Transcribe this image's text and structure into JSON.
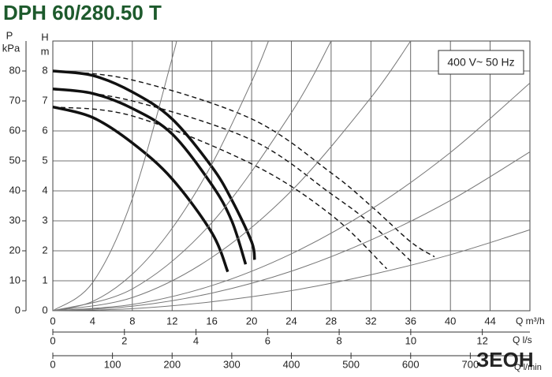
{
  "chart_data": {
    "type": "line",
    "title": "DPH 60/280.50 T",
    "annotation": "400 V~ 50 Hz",
    "ylabel": "H",
    "yunit": "m",
    "y2label": "P",
    "y2unit": "kPa",
    "xlabel": "Q m³/h",
    "x2label": "Q l/s",
    "x3label": "Q l/min",
    "watermark": "ЗЕОН",
    "grid": true,
    "xlim": [
      0,
      48
    ],
    "xticks": [
      0,
      4,
      8,
      12,
      16,
      20,
      24,
      28,
      32,
      36,
      40,
      44
    ],
    "ylim": [
      0,
      9
    ],
    "yticks": [
      0,
      1,
      2,
      3,
      4,
      5,
      6,
      7,
      8
    ],
    "y2lim": [
      0,
      90
    ],
    "y2ticks": [
      0,
      10,
      20,
      30,
      40,
      50,
      60,
      70,
      80
    ],
    "x2lim": [
      0,
      13.33
    ],
    "x2ticks": [
      0,
      2,
      4,
      6,
      8,
      10,
      12
    ],
    "x3lim": [
      0,
      800
    ],
    "x3ticks": [
      0,
      100,
      200,
      300,
      400,
      500,
      600,
      700
    ],
    "series": [
      {
        "style": "solid",
        "color": "#111111",
        "x": [
          0,
          4,
          8,
          12,
          16,
          18,
          20,
          20.3
        ],
        "values": [
          8,
          7.85,
          7.3,
          6.4,
          4.8,
          3.7,
          2.3,
          1.7
        ]
      },
      {
        "style": "solid",
        "color": "#111111",
        "x": [
          0,
          4,
          8,
          12,
          16,
          18,
          19.4
        ],
        "values": [
          7.4,
          7.25,
          6.75,
          5.9,
          4.2,
          3.0,
          1.55
        ]
      },
      {
        "style": "solid",
        "color": "#111111",
        "x": [
          0,
          4,
          8,
          12,
          16,
          17.6
        ],
        "values": [
          6.8,
          6.45,
          5.6,
          4.4,
          2.6,
          1.3
        ]
      },
      {
        "style": "dashed",
        "color": "#111111",
        "x": [
          0,
          8,
          20,
          28,
          32,
          36,
          38.4
        ],
        "values": [
          8,
          7.7,
          6.4,
          4.6,
          3.5,
          2.3,
          1.8
        ]
      },
      {
        "style": "dashed",
        "color": "#111111",
        "x": [
          0,
          8,
          20,
          28,
          32,
          36.2
        ],
        "values": [
          7.4,
          7.0,
          5.7,
          3.9,
          2.9,
          1.6
        ]
      },
      {
        "style": "dashed",
        "color": "#111111",
        "x": [
          0,
          8,
          20,
          28,
          33.6
        ],
        "values": [
          6.8,
          6.5,
          4.9,
          3.2,
          1.4
        ]
      },
      {
        "style": "thin",
        "color": "#777777",
        "x": [
          0,
          4,
          8,
          12,
          12.4
        ],
        "values": [
          0,
          0.94,
          3.74,
          8.42,
          9.0
        ]
      },
      {
        "style": "thin",
        "color": "#777777",
        "x": [
          0,
          4,
          8,
          12,
          16,
          20,
          21.7
        ],
        "values": [
          0,
          0.31,
          1.22,
          2.75,
          4.89,
          7.64,
          9.0
        ]
      },
      {
        "style": "thin",
        "color": "#777777",
        "x": [
          0,
          8,
          16,
          24,
          28
        ],
        "values": [
          0,
          0.73,
          2.94,
          6.61,
          9.0
        ]
      },
      {
        "style": "thin",
        "color": "#777777",
        "x": [
          0,
          8,
          16,
          24,
          32,
          36
        ],
        "values": [
          0,
          0.44,
          1.78,
          4.0,
          7.11,
          9.0
        ]
      },
      {
        "style": "thin",
        "color": "#777777",
        "x": [
          0,
          8,
          16,
          24,
          32,
          40,
          48
        ],
        "values": [
          0,
          0.21,
          0.84,
          1.9,
          3.38,
          5.28,
          7.6
        ]
      },
      {
        "style": "thin",
        "color": "#777777",
        "x": [
          0,
          8,
          16,
          24,
          32,
          40,
          48
        ],
        "values": [
          0,
          0.15,
          0.59,
          1.32,
          2.36,
          3.68,
          5.3
        ]
      },
      {
        "style": "thin",
        "color": "#777777",
        "x": [
          0,
          8,
          16,
          24,
          32,
          40,
          48
        ],
        "values": [
          0,
          0.07,
          0.3,
          0.67,
          1.2,
          1.87,
          2.7
        ]
      }
    ]
  }
}
